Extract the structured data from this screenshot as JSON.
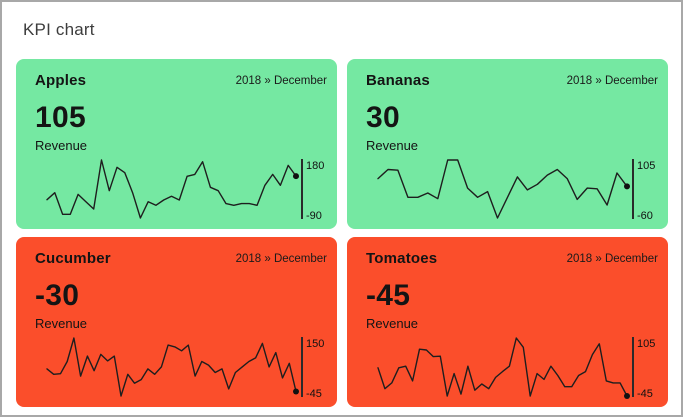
{
  "window": {
    "border_color": "#a8a8a8",
    "background": "#ffffff"
  },
  "header": {
    "title": "KPI chart"
  },
  "colors": {
    "positive": "#75e8a2",
    "negative": "#fb4e2b",
    "line": "#1e1e1e",
    "text": "#141414"
  },
  "chart_data": [
    {
      "type": "line",
      "title": "Apples",
      "period": "2018 » December",
      "kpi_value": "105",
      "kpi_label": "Revenue",
      "sentiment": "positive",
      "ylim": [
        -90,
        180
      ],
      "axis_labels": {
        "top": "180",
        "bottom": "-90"
      },
      "values": [
        -5,
        28,
        -73,
        -73,
        20,
        -14,
        -48,
        180,
        37,
        146,
        121,
        28,
        -90,
        -14,
        -31,
        -6,
        11,
        -6,
        104,
        113,
        172,
        53,
        37,
        -23,
        -31,
        -23,
        -23,
        -31,
        62,
        113,
        62,
        155,
        105
      ]
    },
    {
      "type": "line",
      "title": "Bananas",
      "period": "2018 » December",
      "kpi_value": "30",
      "kpi_label": "Revenue",
      "sentiment": "positive",
      "ylim": [
        -60,
        105
      ],
      "axis_labels": {
        "top": "105",
        "bottom": "-60"
      },
      "values": [
        52,
        78,
        76,
        -1,
        -1,
        11,
        -5,
        105,
        105,
        25,
        -1,
        15,
        -60,
        -1,
        57,
        20,
        36,
        62,
        78,
        52,
        -7,
        25,
        23,
        -23,
        68,
        30
      ]
    },
    {
      "type": "line",
      "title": "Cucumber",
      "period": "2018 » December",
      "kpi_value": "-30",
      "kpi_label": "Revenue",
      "sentiment": "negative",
      "ylim": [
        -45,
        150
      ],
      "axis_labels": {
        "top": "150",
        "bottom": "-45"
      },
      "values": [
        46,
        28,
        30,
        71,
        150,
        22,
        89,
        40,
        95,
        73,
        89,
        -45,
        28,
        -2,
        10,
        46,
        28,
        53,
        126,
        120,
        107,
        126,
        22,
        71,
        59,
        34,
        46,
        -21,
        34,
        53,
        71,
        83,
        132,
        53,
        101,
        16,
        65,
        -30
      ]
    },
    {
      "type": "line",
      "title": "Tomatoes",
      "period": "2018 » December",
      "kpi_value": "-45",
      "kpi_label": "Revenue",
      "sentiment": "negative",
      "ylim": [
        -45,
        105
      ],
      "axis_labels": {
        "top": "105",
        "bottom": "-45"
      },
      "values": [
        28,
        -26,
        -11,
        28,
        32,
        -6,
        76,
        74,
        57,
        58,
        -45,
        13,
        -40,
        32,
        -30,
        -14,
        -26,
        3,
        18,
        32,
        105,
        81,
        -45,
        13,
        -2,
        32,
        8,
        -21,
        -21,
        8,
        18,
        62,
        90,
        -6,
        -11,
        -11,
        -45
      ]
    }
  ]
}
